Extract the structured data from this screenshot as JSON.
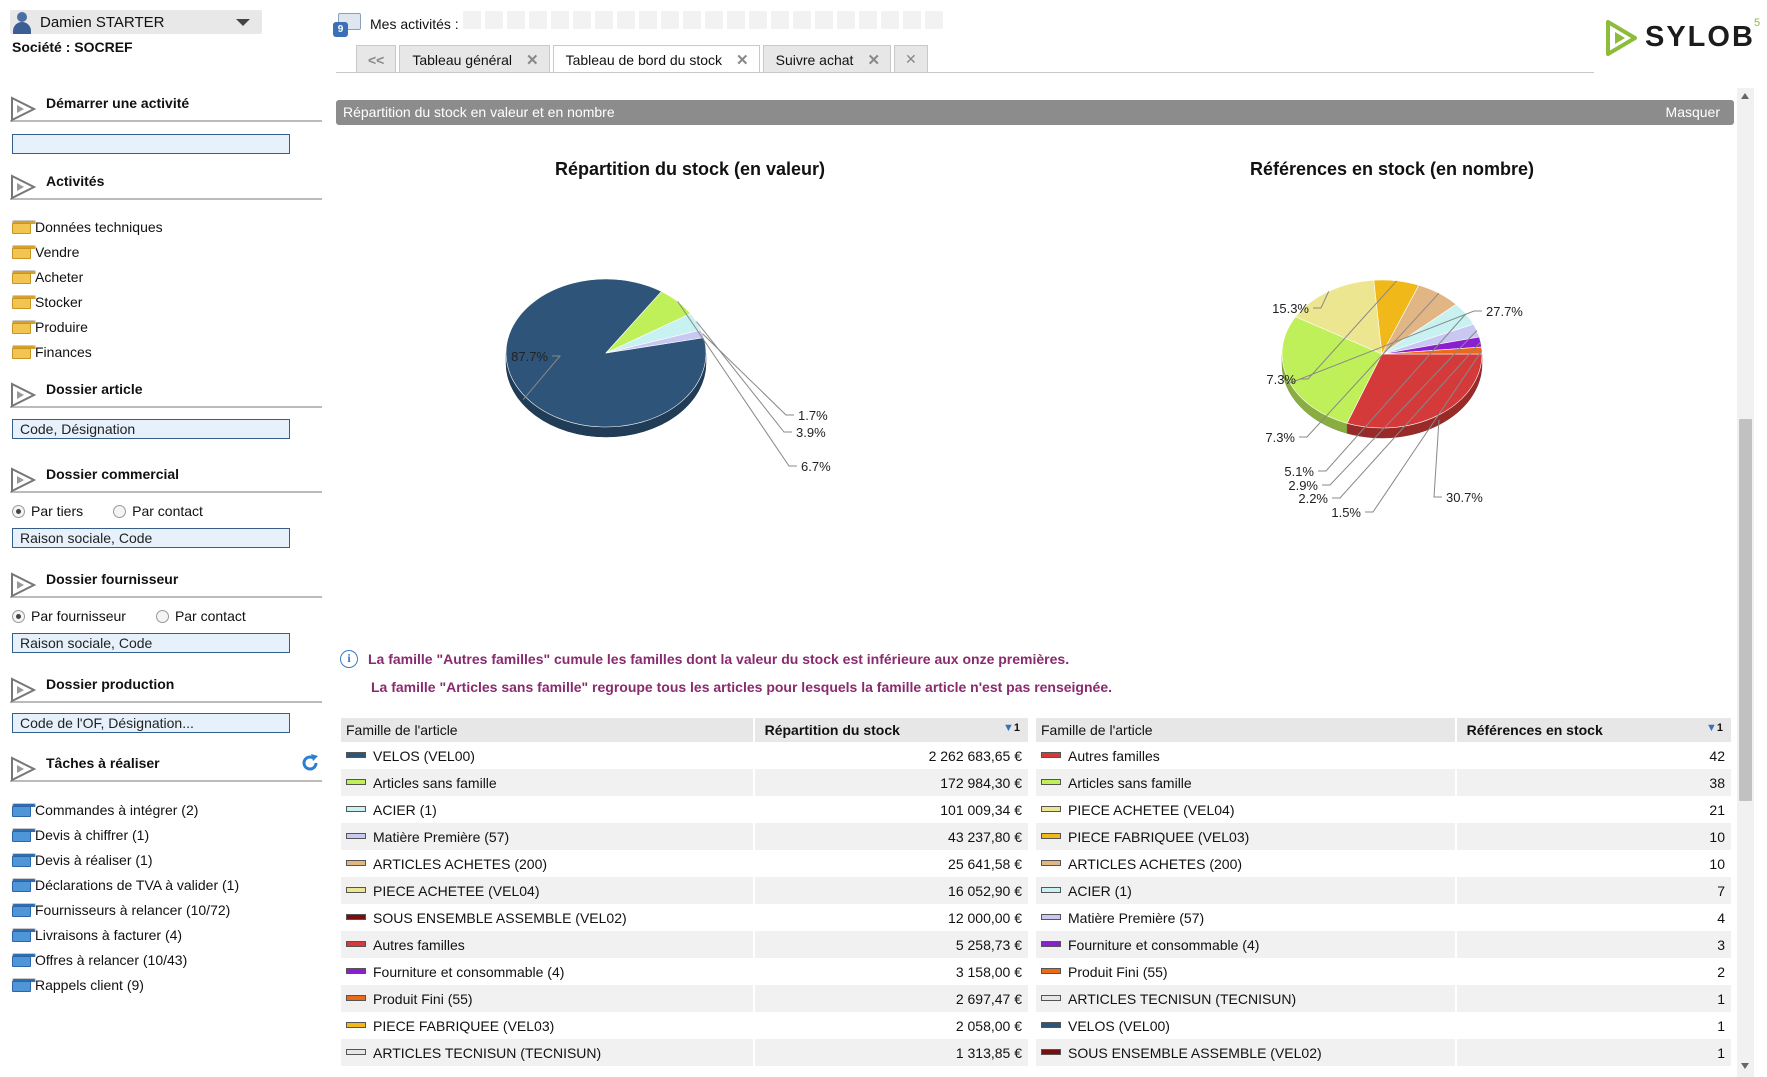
{
  "user": {
    "name": "Damien STARTER",
    "company": "Société : SOCREF"
  },
  "sidebar": {
    "start_activity": {
      "title": "Démarrer une activité",
      "input_value": ""
    },
    "activities": {
      "title": "Activités",
      "items": [
        "Données techniques",
        "Vendre",
        "Acheter",
        "Stocker",
        "Produire",
        "Finances"
      ]
    },
    "article_file": {
      "title": "Dossier article",
      "input_value": "Code, Désignation"
    },
    "commercial_file": {
      "title": "Dossier commercial",
      "radio_1": "Par tiers",
      "radio_2": "Par contact",
      "input_value": "Raison sociale, Code"
    },
    "supplier_file": {
      "title": "Dossier fournisseur",
      "radio_1": "Par fournisseur",
      "radio_2": "Par contact",
      "input_value": "Raison sociale, Code"
    },
    "production_file": {
      "title": "Dossier production",
      "input_value": "Code de l'OF, Désignation..."
    },
    "tasks": {
      "title": "Tâches à réaliser",
      "items": [
        "Commandes à intégrer (2)",
        "Devis à chiffrer (1)",
        "Devis à réaliser (1)",
        "Déclarations de TVA à valider (1)",
        "Fournisseurs à relancer (10/72)",
        "Livraisons à facturer (4)",
        "Offres à relancer (10/43)",
        "Rappels client (9)"
      ]
    }
  },
  "topbar": {
    "activity_badge": "9",
    "my_activities_label": "Mes activités :",
    "logo_text": "SYLOB",
    "logo_sup": "5"
  },
  "tabs": {
    "nav_back": "<<",
    "items": [
      {
        "label": "Tableau général",
        "close": "✕",
        "active": false
      },
      {
        "label": "Tableau de bord du stock",
        "close": "✕",
        "active": true
      },
      {
        "label": "Suivre achat",
        "close": "✕",
        "active": false
      }
    ],
    "close_all": "✕"
  },
  "panel": {
    "title": "Répartition du stock en valeur et en nombre",
    "hide_label": "Masquer"
  },
  "colors": {
    "accent_gray": "#8c8c8c",
    "note_purple": "#8a2a6e",
    "input_bg": "#e6f1fb"
  },
  "chart_data": [
    {
      "type": "pie",
      "title": "Répartition du stock (en valeur)",
      "labels": [
        "VELOS (VEL00)",
        "Articles sans famille",
        "ACIER (1)",
        "Matière Première (57)"
      ],
      "values": [
        87.7,
        6.7,
        3.9,
        1.7
      ],
      "value_labels": [
        "87.7%",
        "6.7%",
        "3.9%",
        "1.7%"
      ],
      "colors": [
        "#2e5479",
        "#bff05a",
        "#c8f2f2",
        "#c9c8f3"
      ]
    },
    {
      "type": "pie",
      "title": "Références en stock (en nombre)",
      "labels": [
        "Autres familles",
        "Articles sans famille",
        "PIECE ACHETEE (VEL04)",
        "PIECE FABRIQUEE (VEL03)",
        "ARTICLES ACHETES (200)",
        "ACIER (1)",
        "Matière Première (57)",
        "Fourniture et consommable (4)",
        "Produit Fini (55)"
      ],
      "values": [
        30.7,
        27.7,
        15.3,
        7.3,
        7.3,
        5.1,
        2.9,
        2.2,
        1.5
      ],
      "value_labels": [
        "30.7%",
        "27.7%",
        "15.3%",
        "7.3%",
        "7.3%",
        "5.1%",
        "2.9%",
        "2.2%",
        "1.5%"
      ],
      "colors": [
        "#d43a3a",
        "#bff05a",
        "#ede690",
        "#f0b818",
        "#e2b684",
        "#c8f2f2",
        "#c9c8f3",
        "#8a1fd0",
        "#ea6a1a"
      ]
    }
  ],
  "notes": [
    "La famille \"Autres familles\" cumule les familles dont la valeur du stock est inférieure aux onze premières.",
    "La famille \"Articles sans famille\" regroupe tous les articles pour lesquels la famille article n'est pas renseignée."
  ],
  "table_value": {
    "col_family": "Famille de l'article",
    "col_value": "Répartition du stock",
    "sort_rank": "1",
    "rows": [
      {
        "family": "VELOS (VEL00)",
        "value": "2 262 683,65 €",
        "color": "#2e5479"
      },
      {
        "family": "Articles sans famille",
        "value": "172 984,30 €",
        "color": "#bff05a"
      },
      {
        "family": "ACIER (1)",
        "value": "101 009,34 €",
        "color": "#c8f2f2"
      },
      {
        "family": "Matière Première (57)",
        "value": "43 237,80 €",
        "color": "#c9c8f3"
      },
      {
        "family": "ARTICLES ACHETES (200)",
        "value": "25 641,58 €",
        "color": "#e2b684"
      },
      {
        "family": "PIECE ACHETEE (VEL04)",
        "value": "16 052,90 €",
        "color": "#ede690"
      },
      {
        "family": "SOUS ENSEMBLE ASSEMBLE (VEL02)",
        "value": "12 000,00 €",
        "color": "#7a0e0e"
      },
      {
        "family": "Autres familles",
        "value": "5 258,73 €",
        "color": "#d43a3a"
      },
      {
        "family": "Fourniture et consommable (4)",
        "value": "3 158,00 €",
        "color": "#8a1fd0"
      },
      {
        "family": "Produit Fini (55)",
        "value": "2 697,47 €",
        "color": "#ea6a1a"
      },
      {
        "family": "PIECE FABRIQUEE (VEL03)",
        "value": "2 058,00 €",
        "color": "#f0b818"
      },
      {
        "family": "ARTICLES TECNISUN (TECNISUN)",
        "value": "1 313,85 €",
        "color": "#e6e6e6"
      }
    ]
  },
  "table_count": {
    "col_family": "Famille de l'article",
    "col_value": "Références en stock",
    "sort_rank": "1",
    "rows": [
      {
        "family": "Autres familles",
        "value": "42",
        "color": "#d43a3a"
      },
      {
        "family": "Articles sans famille",
        "value": "38",
        "color": "#bff05a"
      },
      {
        "family": "PIECE ACHETEE (VEL04)",
        "value": "21",
        "color": "#ede690"
      },
      {
        "family": "PIECE FABRIQUEE (VEL03)",
        "value": "10",
        "color": "#f0b818"
      },
      {
        "family": "ARTICLES ACHETES (200)",
        "value": "10",
        "color": "#e2b684"
      },
      {
        "family": "ACIER (1)",
        "value": "7",
        "color": "#c8f2f2"
      },
      {
        "family": "Matière Première (57)",
        "value": "4",
        "color": "#c9c8f3"
      },
      {
        "family": "Fourniture et consommable (4)",
        "value": "3",
        "color": "#8a1fd0"
      },
      {
        "family": "Produit Fini (55)",
        "value": "2",
        "color": "#ea6a1a"
      },
      {
        "family": "ARTICLES TECNISUN (TECNISUN)",
        "value": "1",
        "color": "#e6e6e6"
      },
      {
        "family": "VELOS (VEL00)",
        "value": "1",
        "color": "#2e5479"
      },
      {
        "family": "SOUS ENSEMBLE ASSEMBLE (VEL02)",
        "value": "1",
        "color": "#7a0e0e"
      }
    ]
  }
}
